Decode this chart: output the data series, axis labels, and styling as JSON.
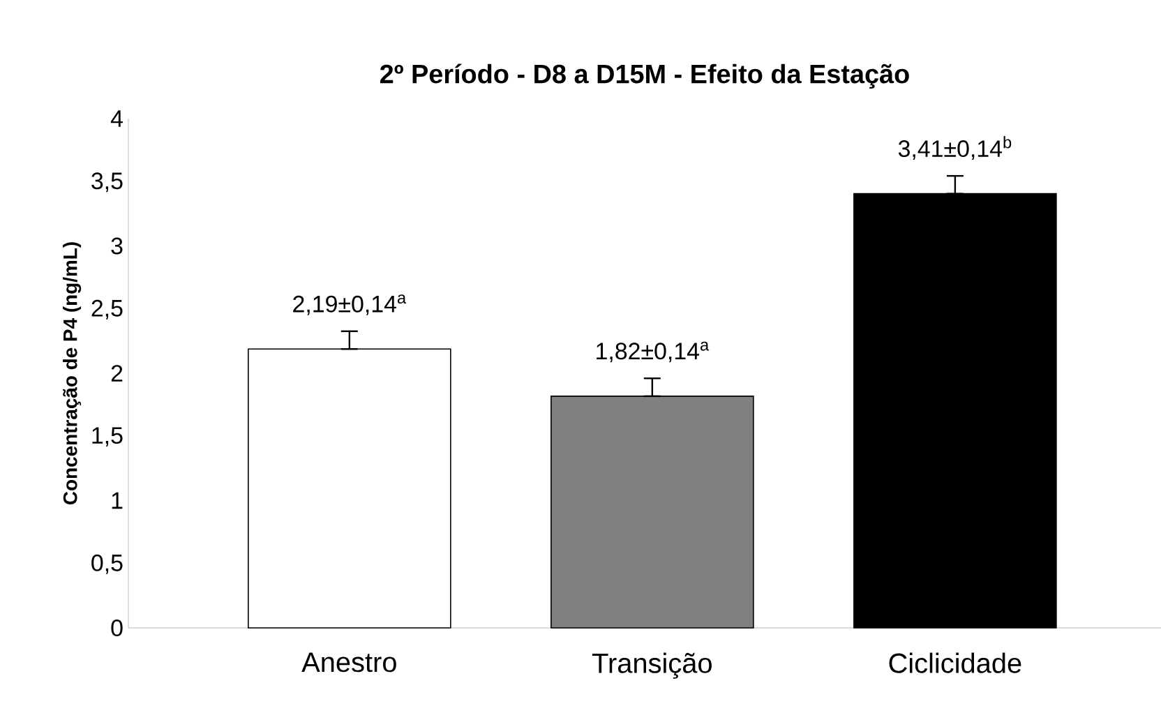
{
  "chart_data": {
    "type": "bar",
    "title": "2º Período  - D8 a D15M - Efeito da Estação",
    "ylabel": "Concentração de P4 (ng/mL)",
    "categories": [
      "Anestro",
      "Transição",
      "Ciclicidade"
    ],
    "values": [
      2.19,
      1.82,
      3.41
    ],
    "colors": [
      "#ffffff",
      "#808080",
      "#000000"
    ],
    "errors": [
      [
        2.19,
        2.33
      ],
      [
        1.82,
        1.96
      ],
      [
        3.41,
        3.55
      ]
    ],
    "value_labels": [
      "2,19±0,14$^{a}$",
      "1,82±0,14$^{a}$",
      "3,41±0,14$^{b}$"
    ],
    "ylim": [
      0,
      4
    ],
    "yticks": [
      0,
      {
        "value": 0.5,
        "label": "0,5"
      },
      1,
      {
        "value": 1.5,
        "label": "1,5"
      },
      2,
      {
        "value": 2.5,
        "label": "2,5"
      },
      3,
      {
        "value": 3.5,
        "label": "3,5"
      },
      4
    ],
    "grid": false
  }
}
